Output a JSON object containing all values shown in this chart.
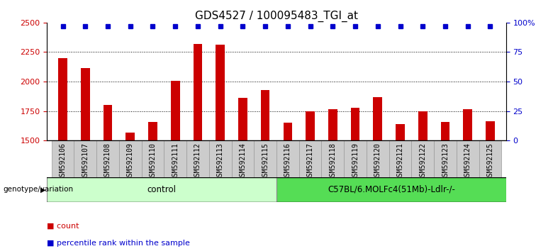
{
  "title": "GDS4527 / 100095483_TGI_at",
  "samples": [
    "GSM592106",
    "GSM592107",
    "GSM592108",
    "GSM592109",
    "GSM592110",
    "GSM592111",
    "GSM592112",
    "GSM592113",
    "GSM592114",
    "GSM592115",
    "GSM592116",
    "GSM592117",
    "GSM592118",
    "GSM592119",
    "GSM592120",
    "GSM592121",
    "GSM592122",
    "GSM592123",
    "GSM592124",
    "GSM592125"
  ],
  "counts": [
    2200,
    2115,
    1800,
    1570,
    1660,
    2005,
    2320,
    2310,
    1865,
    1930,
    1650,
    1745,
    1765,
    1775,
    1870,
    1640,
    1745,
    1660,
    1765,
    1665
  ],
  "percentile_ranks": [
    97,
    97,
    97,
    97,
    97,
    97,
    97,
    97,
    97,
    97,
    97,
    97,
    97,
    97,
    97,
    97,
    97,
    97,
    97,
    97
  ],
  "n_control": 10,
  "n_treatment": 10,
  "control_label": "control",
  "treatment_label": "C57BL/6.MOLFc4(51Mb)-Ldlr-/-",
  "genotype_label": "genotype/variation",
  "ylim_left": [
    1500,
    2500
  ],
  "ylim_right": [
    0,
    100
  ],
  "yticks_left": [
    1500,
    1750,
    2000,
    2250,
    2500
  ],
  "yticks_right": [
    0,
    25,
    50,
    75,
    100
  ],
  "bar_color": "#cc0000",
  "dot_color": "#0000cc",
  "control_bg": "#ccffcc",
  "treatment_bg": "#55dd55",
  "sample_bg": "#cccccc",
  "grid_color": "#000000",
  "title_fontsize": 11,
  "tick_label_fontsize": 7,
  "axis_tick_fontsize": 8,
  "legend_fontsize": 8,
  "bar_width": 0.4
}
